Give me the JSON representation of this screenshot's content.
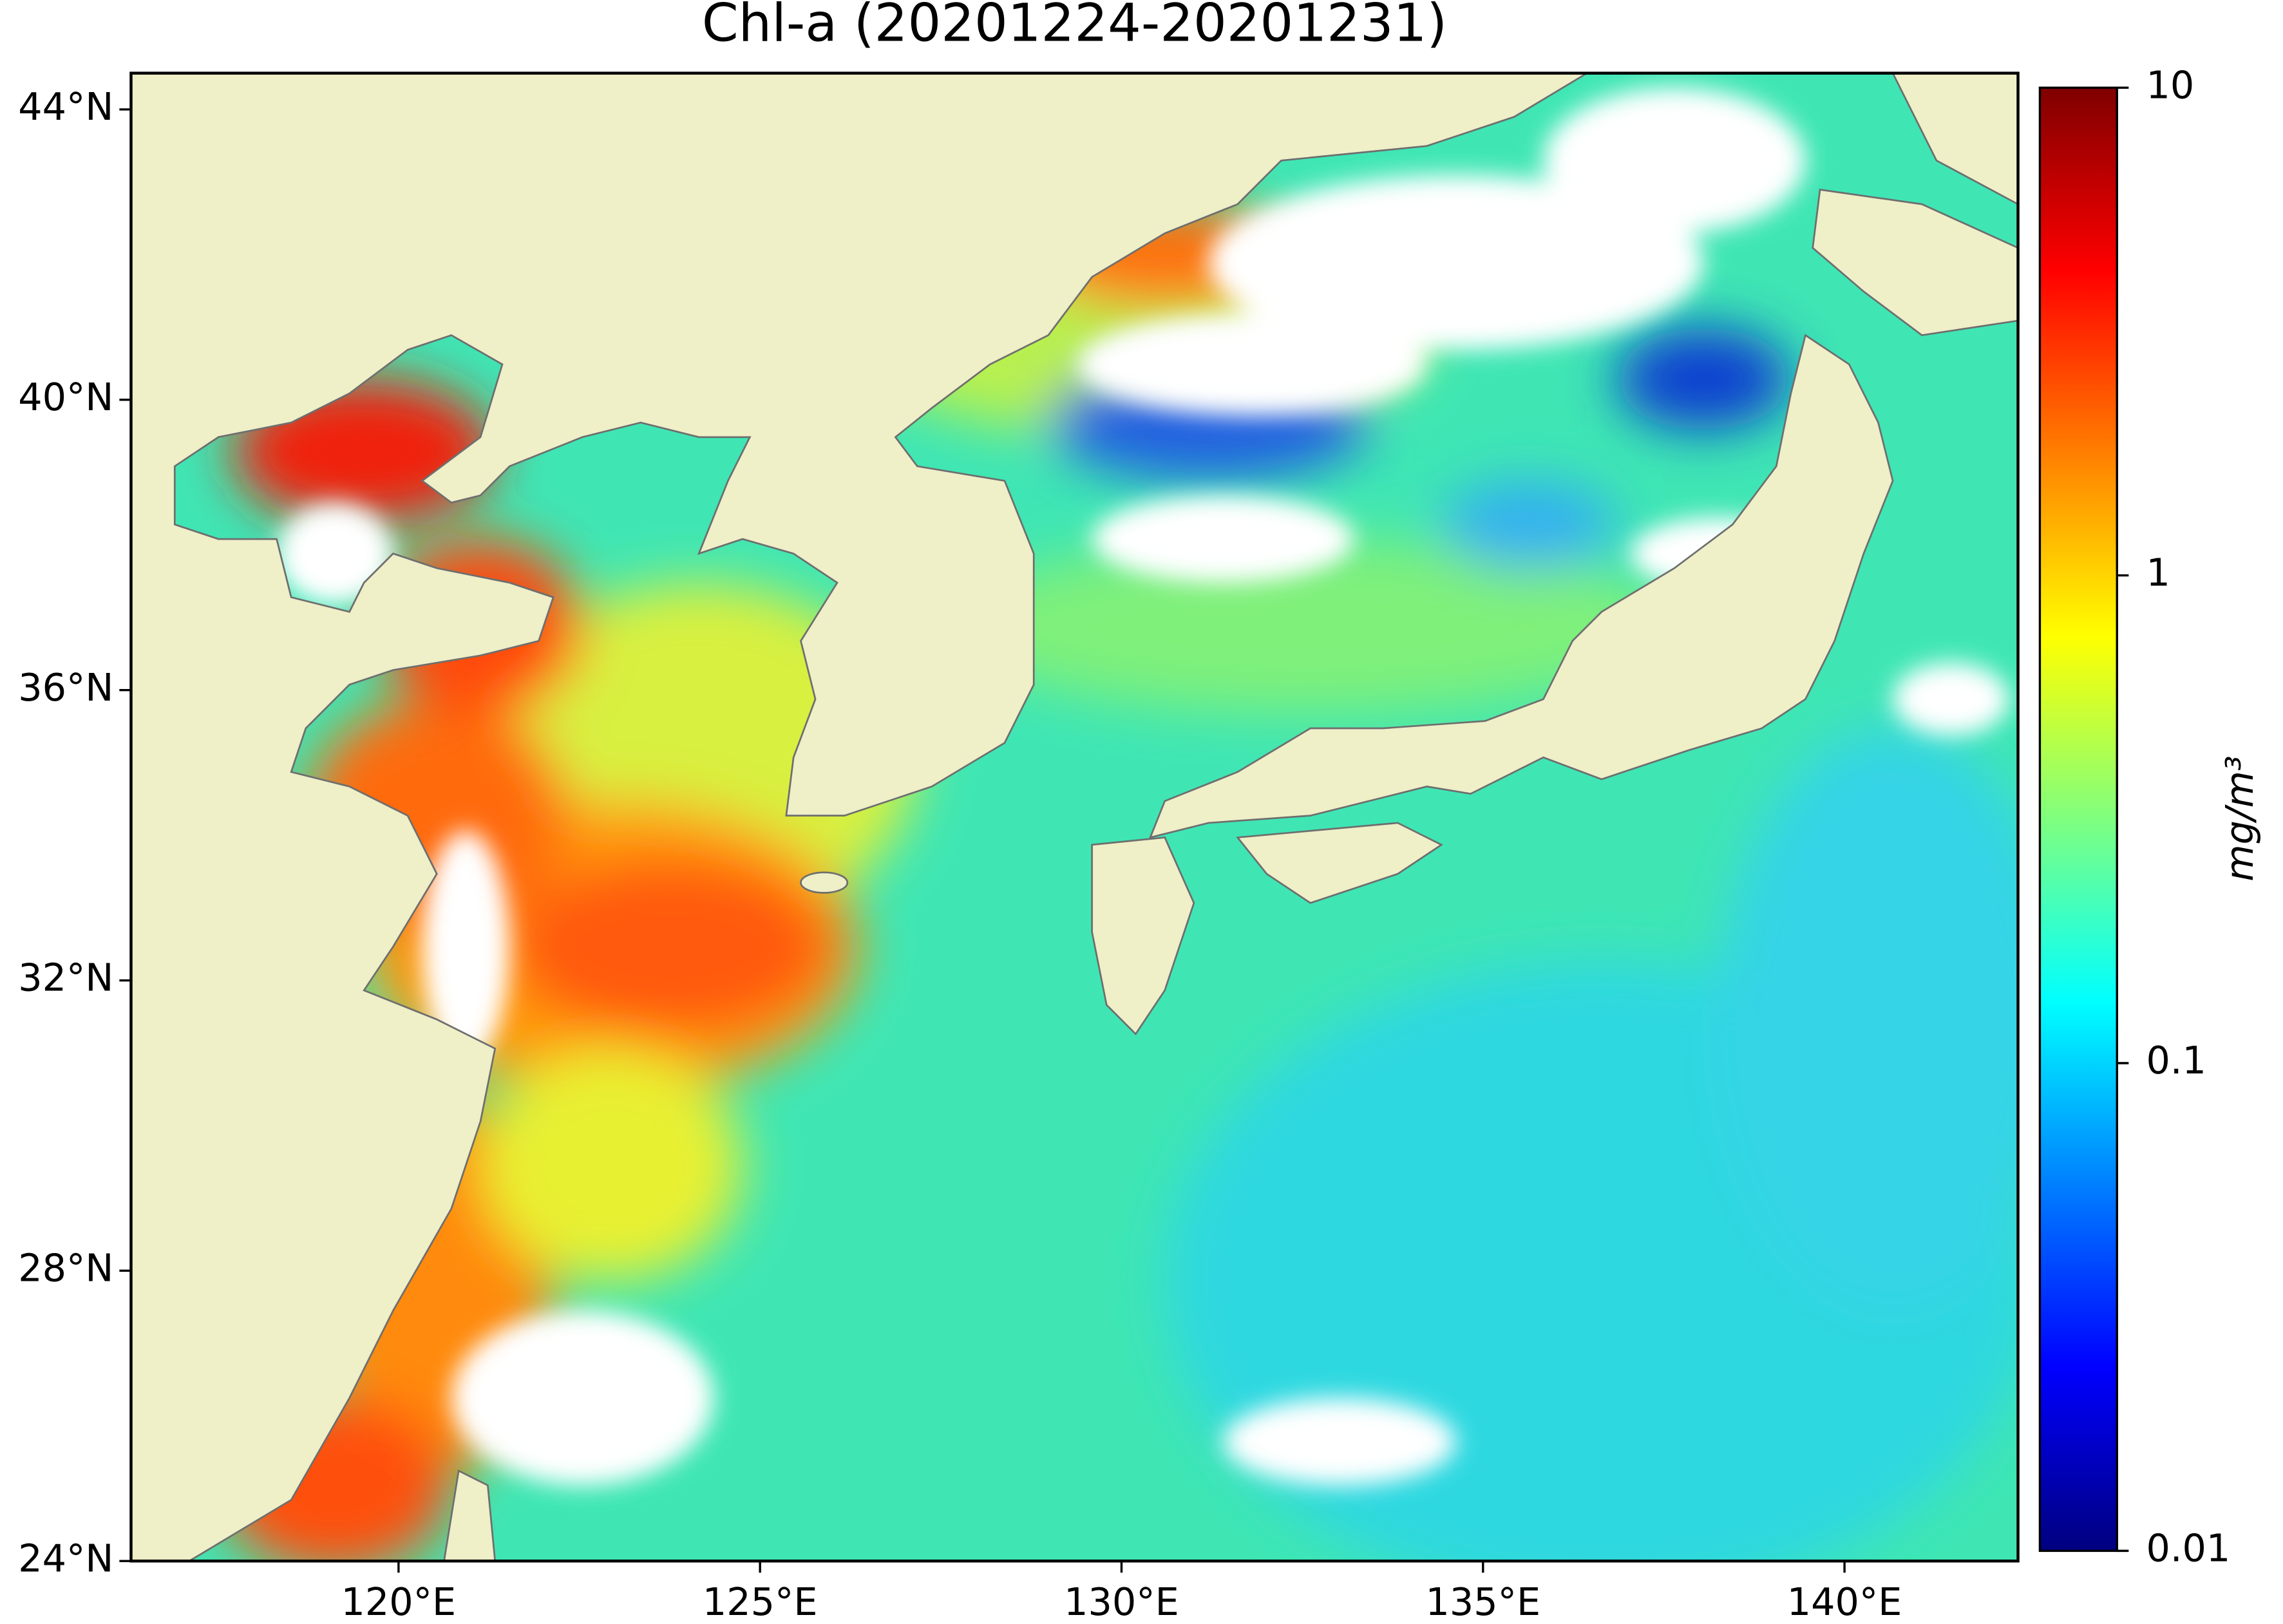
{
  "chart_data": {
    "type": "map",
    "title": "Chl-a (20201224-20201231)",
    "xlim": [
      116.3,
      142.4
    ],
    "ylim": [
      24,
      44.5
    ],
    "xticks": [
      {
        "value": 120,
        "label": "120°E"
      },
      {
        "value": 125,
        "label": "125°E"
      },
      {
        "value": 130,
        "label": "130°E"
      },
      {
        "value": 135,
        "label": "135°E"
      },
      {
        "value": 140,
        "label": "140°E"
      }
    ],
    "yticks": [
      {
        "value": 24,
        "label": "24°N"
      },
      {
        "value": 28,
        "label": "28°N"
      },
      {
        "value": 32,
        "label": "32°N"
      },
      {
        "value": 36,
        "label": "36°N"
      },
      {
        "value": 40,
        "label": "40°N"
      },
      {
        "value": 44,
        "label": "44°N"
      }
    ],
    "colorbar": {
      "label": "mg/m³",
      "scale": "log",
      "colormap": "jet",
      "lim": [
        0.01,
        10
      ],
      "ticks": [
        0.01,
        0.1,
        1,
        10
      ]
    }
  }
}
